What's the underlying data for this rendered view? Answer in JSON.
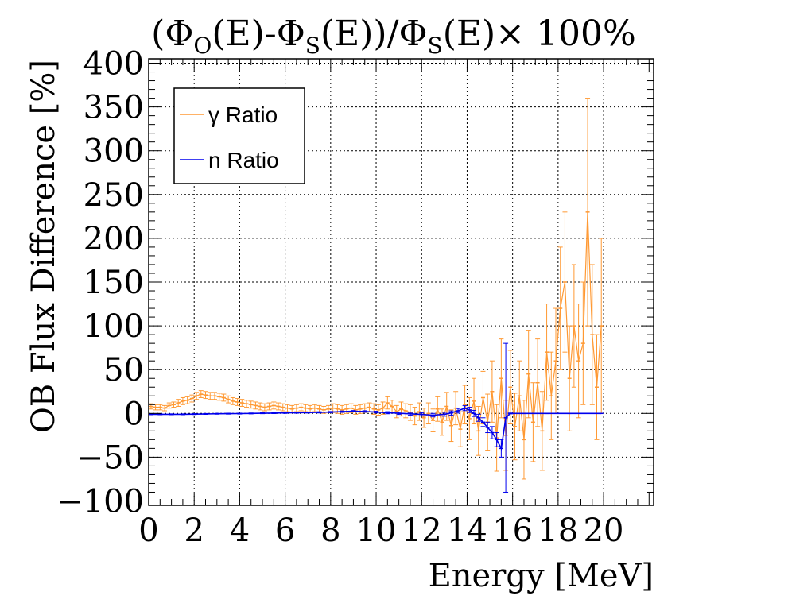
{
  "chart_data": {
    "type": "line",
    "title": {
      "lparen": "(",
      "phi1": "Φ",
      "sub1": "O",
      "mid1": "(E)-",
      "phi2": "Φ",
      "sub2": "S",
      "mid2": "(E))/",
      "phi3": "Φ",
      "sub3": "S",
      "tail": "(E)× 100%"
    },
    "xlabel": "Energy [MeV]",
    "ylabel": "OB Flux Difference [%]",
    "xlim": [
      0,
      22.2
    ],
    "ylim": [
      -105,
      405
    ],
    "x_ticks": [
      0,
      2,
      4,
      6,
      8,
      10,
      12,
      14,
      16,
      18,
      20
    ],
    "x_tick_labels": [
      "0",
      "2",
      "4",
      "6",
      "8",
      "10",
      "12",
      "14",
      "16",
      "18",
      "20"
    ],
    "y_ticks": [
      -100,
      -50,
      0,
      50,
      100,
      150,
      200,
      250,
      300,
      350,
      400
    ],
    "y_tick_labels": [
      "−100",
      "−50",
      "0",
      "50",
      "100",
      "150",
      "200",
      "250",
      "300",
      "350",
      "400"
    ],
    "grid": true,
    "legend_position": "top-left",
    "series": [
      {
        "name": "γ Ratio",
        "color": "#ff9933",
        "points": [
          [
            0.1,
            8,
            3
          ],
          [
            0.3,
            7,
            3
          ],
          [
            0.5,
            7,
            3
          ],
          [
            0.7,
            6,
            3
          ],
          [
            0.9,
            9,
            3
          ],
          [
            1.1,
            10,
            3
          ],
          [
            1.3,
            12,
            4
          ],
          [
            1.5,
            14,
            4
          ],
          [
            1.7,
            15,
            4
          ],
          [
            1.9,
            17,
            4
          ],
          [
            2.1,
            20,
            4
          ],
          [
            2.3,
            22,
            4
          ],
          [
            2.5,
            21,
            4
          ],
          [
            2.7,
            20,
            4
          ],
          [
            2.9,
            20,
            4
          ],
          [
            3.1,
            19,
            4
          ],
          [
            3.3,
            18,
            4
          ],
          [
            3.5,
            16,
            4
          ],
          [
            3.7,
            14,
            4
          ],
          [
            3.9,
            13,
            4
          ],
          [
            4.1,
            12,
            4
          ],
          [
            4.3,
            11,
            4
          ],
          [
            4.5,
            10,
            4
          ],
          [
            4.7,
            9,
            4
          ],
          [
            4.9,
            8,
            4
          ],
          [
            5.1,
            7,
            4
          ],
          [
            5.3,
            8,
            4
          ],
          [
            5.5,
            9,
            4
          ],
          [
            5.7,
            8,
            4
          ],
          [
            5.9,
            7,
            4
          ],
          [
            6.1,
            6,
            4
          ],
          [
            6.3,
            5,
            4
          ],
          [
            6.5,
            6,
            4
          ],
          [
            6.7,
            7,
            4
          ],
          [
            6.9,
            6,
            4
          ],
          [
            7.1,
            5,
            4
          ],
          [
            7.3,
            6,
            4
          ],
          [
            7.5,
            5,
            4
          ],
          [
            7.7,
            4,
            4
          ],
          [
            7.9,
            5,
            4
          ],
          [
            8.1,
            6,
            5
          ],
          [
            8.3,
            5,
            5
          ],
          [
            8.5,
            4,
            5
          ],
          [
            8.7,
            5,
            5
          ],
          [
            8.9,
            6,
            5
          ],
          [
            9.1,
            4,
            5
          ],
          [
            9.3,
            5,
            5
          ],
          [
            9.5,
            6,
            5
          ],
          [
            9.7,
            7,
            5
          ],
          [
            9.9,
            5,
            6
          ],
          [
            10.1,
            4,
            6
          ],
          [
            10.3,
            6,
            7
          ],
          [
            10.5,
            12,
            7
          ],
          [
            10.7,
            8,
            7
          ],
          [
            10.9,
            2,
            7
          ],
          [
            11.1,
            5,
            8
          ],
          [
            11.3,
            3,
            8
          ],
          [
            11.5,
            1,
            9
          ],
          [
            11.7,
            -3,
            10
          ],
          [
            11.9,
            2,
            10
          ],
          [
            12.1,
            -5,
            11
          ],
          [
            12.3,
            0,
            12
          ],
          [
            12.5,
            -8,
            13
          ],
          [
            12.7,
            5,
            14
          ],
          [
            12.9,
            -10,
            15
          ],
          [
            13.1,
            8,
            16
          ],
          [
            13.3,
            -14,
            18
          ],
          [
            13.5,
            6,
            19
          ],
          [
            13.7,
            -18,
            20
          ],
          [
            13.9,
            10,
            22
          ],
          [
            14.1,
            -6,
            24
          ],
          [
            14.3,
            14,
            26
          ],
          [
            14.5,
            -20,
            28
          ],
          [
            14.7,
            18,
            30
          ],
          [
            14.9,
            -10,
            32
          ],
          [
            15.1,
            25,
            35
          ],
          [
            15.3,
            -28,
            38
          ],
          [
            15.5,
            40,
            45
          ],
          [
            15.7,
            -25,
            40
          ],
          [
            15.9,
            30,
            42
          ],
          [
            16.1,
            -15,
            38
          ],
          [
            16.3,
            20,
            40
          ],
          [
            16.5,
            -30,
            45
          ],
          [
            16.7,
            45,
            50
          ],
          [
            16.9,
            -10,
            45
          ],
          [
            17.1,
            35,
            50
          ],
          [
            17.3,
            -20,
            45
          ],
          [
            17.5,
            70,
            55
          ],
          [
            17.7,
            20,
            50
          ],
          [
            17.9,
            60,
            60
          ],
          [
            18.1,
            120,
            70
          ],
          [
            18.3,
            150,
            80
          ],
          [
            18.5,
            40,
            60
          ],
          [
            18.7,
            100,
            70
          ],
          [
            18.9,
            60,
            65
          ],
          [
            19.1,
            80,
            70
          ],
          [
            19.3,
            230,
            130
          ],
          [
            19.5,
            90,
            80
          ],
          [
            19.7,
            30,
            60
          ],
          [
            19.9,
            100,
            100
          ]
        ]
      },
      {
        "name": "n Ratio",
        "color": "#0000ee",
        "points": [
          [
            0.1,
            -1,
            0.5
          ],
          [
            0.5,
            -1,
            0.5
          ],
          [
            1.0,
            -1,
            0.5
          ],
          [
            1.5,
            -1,
            0.5
          ],
          [
            2.0,
            -0.8,
            0.5
          ],
          [
            2.5,
            -0.6,
            0.5
          ],
          [
            3.0,
            -0.4,
            0.5
          ],
          [
            3.5,
            -0.3,
            0.5
          ],
          [
            4.0,
            -0.2,
            0.5
          ],
          [
            4.5,
            0,
            0.5
          ],
          [
            5.0,
            0.2,
            0.5
          ],
          [
            5.5,
            0.4,
            0.6
          ],
          [
            6.0,
            0.6,
            0.6
          ],
          [
            6.5,
            0.8,
            0.6
          ],
          [
            7.0,
            1.0,
            0.6
          ],
          [
            7.5,
            1.2,
            0.7
          ],
          [
            8.0,
            1.5,
            0.7
          ],
          [
            8.5,
            2.0,
            0.8
          ],
          [
            9.0,
            2.5,
            0.8
          ],
          [
            9.5,
            2.2,
            0.9
          ],
          [
            10.0,
            1.5,
            1.0
          ],
          [
            10.5,
            0.8,
            1.2
          ],
          [
            11.0,
            0.2,
            1.4
          ],
          [
            11.5,
            -0.5,
            1.6
          ],
          [
            12.0,
            -1.2,
            1.8
          ],
          [
            12.5,
            -2.0,
            2.0
          ],
          [
            13.0,
            -1.0,
            2.2
          ],
          [
            13.3,
            0.5,
            2.4
          ],
          [
            13.6,
            3.0,
            2.6
          ],
          [
            13.9,
            6.0,
            2.8
          ],
          [
            14.1,
            4.0,
            3.0
          ],
          [
            14.3,
            0.0,
            3.5
          ],
          [
            14.5,
            -5.0,
            4.0
          ],
          [
            14.7,
            -10.0,
            5.0
          ],
          [
            14.9,
            -16.0,
            6.0
          ],
          [
            15.1,
            -22.0,
            7.0
          ],
          [
            15.3,
            -30.0,
            8.0
          ],
          [
            15.5,
            -40.0,
            10.0
          ],
          [
            15.7,
            -5.0,
            85.0
          ],
          [
            15.9,
            0.0,
            0.5
          ],
          [
            16.5,
            0.0,
            0.0
          ],
          [
            17.5,
            0.0,
            0.0
          ],
          [
            18.5,
            0.0,
            0.0
          ],
          [
            19.9,
            0.0,
            0.0
          ]
        ]
      }
    ]
  }
}
